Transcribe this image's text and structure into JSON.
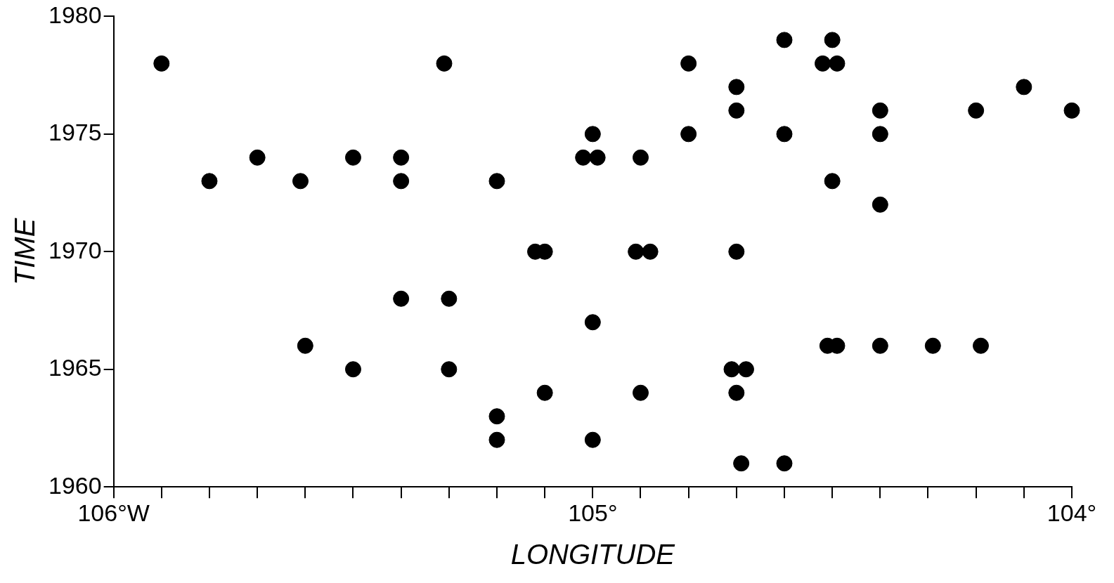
{
  "chart_data": {
    "type": "scatter",
    "xlabel": "LONGITUDE",
    "ylabel": "TIME",
    "xlim": [
      106,
      104
    ],
    "ylim": [
      1960,
      1980
    ],
    "xticks": [
      {
        "value": 106,
        "label": "106°W"
      },
      {
        "value": 105.9,
        "label": null
      },
      {
        "value": 105.8,
        "label": null
      },
      {
        "value": 105.7,
        "label": null
      },
      {
        "value": 105.6,
        "label": null
      },
      {
        "value": 105.5,
        "label": null
      },
      {
        "value": 105.4,
        "label": null
      },
      {
        "value": 105.3,
        "label": null
      },
      {
        "value": 105.2,
        "label": null
      },
      {
        "value": 105.1,
        "label": null
      },
      {
        "value": 105,
        "label": "105°"
      },
      {
        "value": 104.9,
        "label": null
      },
      {
        "value": 104.8,
        "label": null
      },
      {
        "value": 104.7,
        "label": null
      },
      {
        "value": 104.6,
        "label": null
      },
      {
        "value": 104.5,
        "label": null
      },
      {
        "value": 104.4,
        "label": null
      },
      {
        "value": 104.3,
        "label": null
      },
      {
        "value": 104.2,
        "label": null
      },
      {
        "value": 104.1,
        "label": null
      },
      {
        "value": 104,
        "label": "104°"
      }
    ],
    "yticks": [
      1960,
      1965,
      1970,
      1975,
      1980
    ],
    "grid": false,
    "legend": false,
    "marker": "circle",
    "series": [
      {
        "color": "#000000",
        "x": [
          105.9,
          105.8,
          105.7,
          105.61,
          105.6,
          105.5,
          105.5,
          105.4,
          105.4,
          105.4,
          105.31,
          105.3,
          105.3,
          105.2,
          105.2,
          105.2,
          105.12,
          105.1,
          105.1,
          105.0,
          105.02,
          104.99,
          105.0,
          105.0,
          104.9,
          104.91,
          104.88,
          104.9,
          104.8,
          104.8,
          104.7,
          104.7,
          104.7,
          104.71,
          104.68,
          104.7,
          104.69,
          104.6,
          104.6,
          104.6,
          104.52,
          104.49,
          104.5,
          104.5,
          104.51,
          104.49,
          104.4,
          104.4,
          104.4,
          104.4,
          104.29,
          104.2,
          104.19,
          104.1,
          104.0
        ],
        "values": [
          1978,
          1973,
          1974,
          1973,
          1966,
          1974,
          1965,
          1974,
          1973,
          1968,
          1978,
          1968,
          1965,
          1973,
          1963,
          1962,
          1970,
          1970,
          1964,
          1975,
          1974,
          1974,
          1967,
          1962,
          1974,
          1970,
          1970,
          1964,
          1978,
          1975,
          1977,
          1976,
          1970,
          1965,
          1965,
          1964,
          1961,
          1979,
          1975,
          1961,
          1978,
          1978,
          1979,
          1973,
          1966,
          1966,
          1976,
          1975,
          1972,
          1966,
          1966,
          1976,
          1966,
          1977,
          1976
        ]
      }
    ]
  }
}
